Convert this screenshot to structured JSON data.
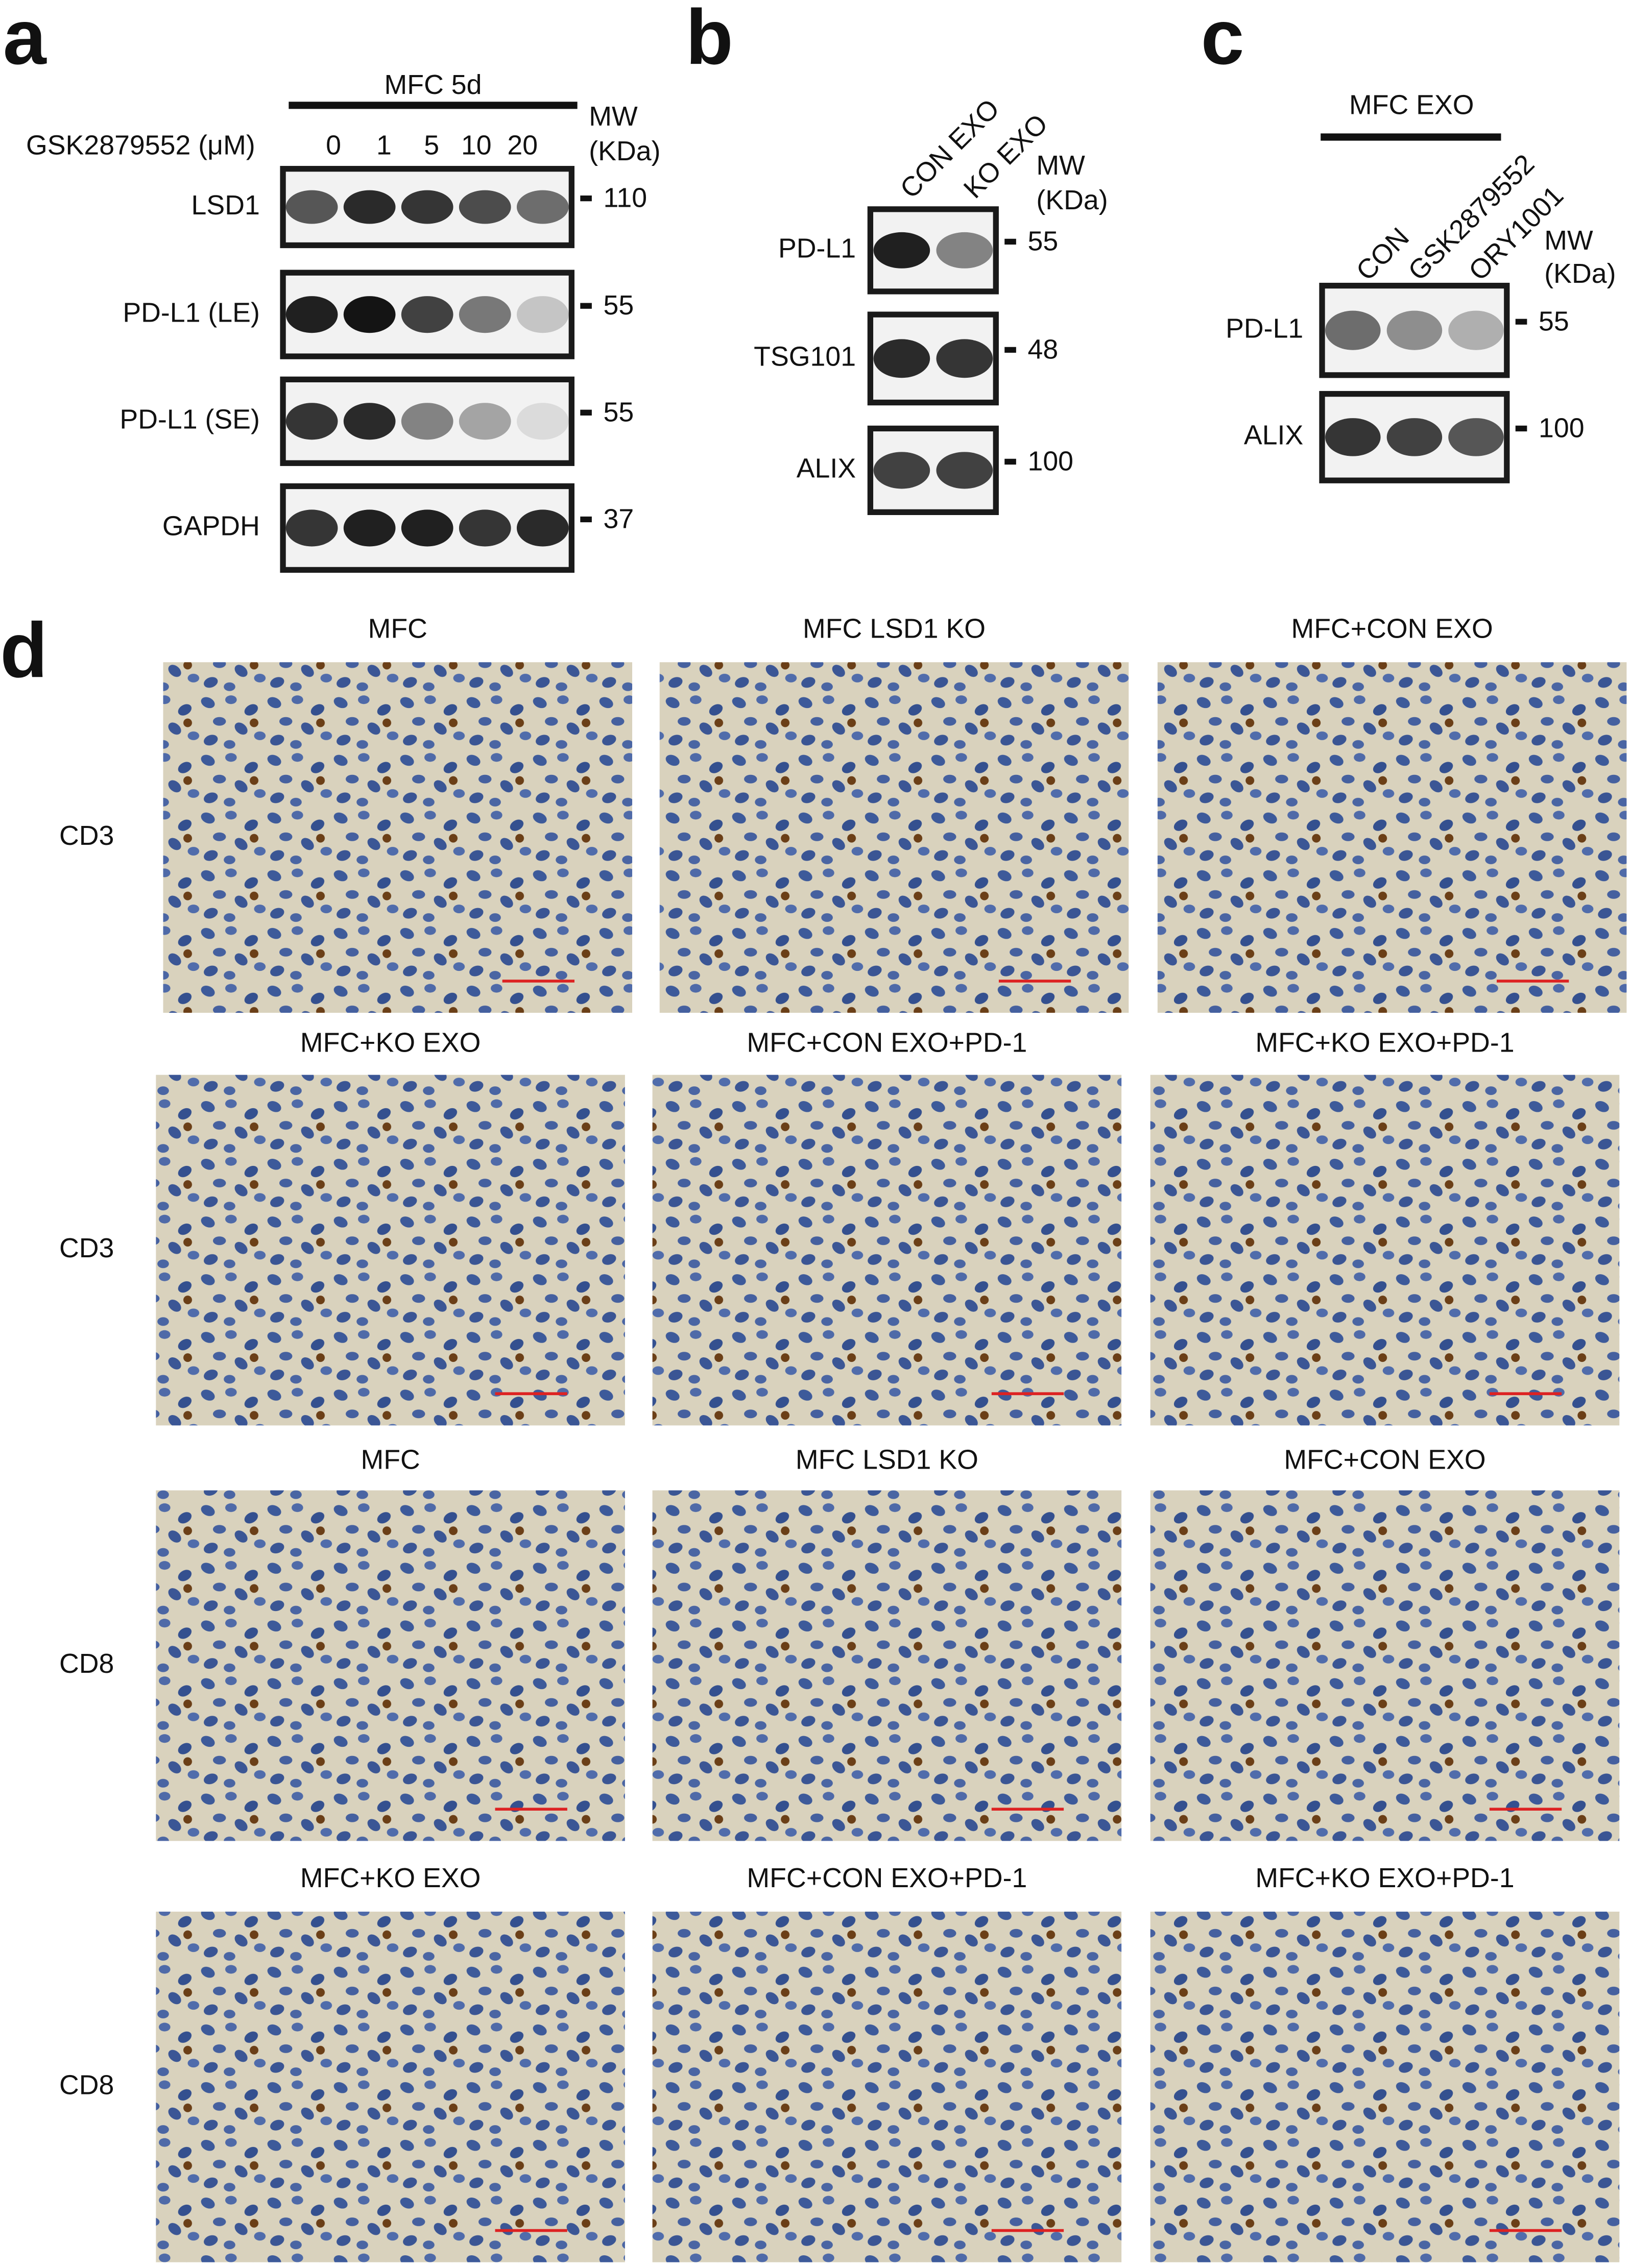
{
  "panels": {
    "a": {
      "label": "a",
      "title": "MFC 5d",
      "treatment": "GSK2879552 (μM)",
      "lanes": [
        "0",
        "1",
        "5",
        "10",
        "20"
      ],
      "mw_header": [
        "MW",
        "(KDa)"
      ],
      "blots": [
        {
          "name": "LSD1",
          "mw": "110"
        },
        {
          "name": "PD-L1 (LE)",
          "mw": "55"
        },
        {
          "name": "PD-L1 (SE)",
          "mw": "55"
        },
        {
          "name": "GAPDH",
          "mw": "37"
        }
      ]
    },
    "b": {
      "label": "b",
      "lanes": [
        "CON EXO",
        "KO EXO"
      ],
      "mw_header": [
        "MW",
        "(KDa)"
      ],
      "blots": [
        {
          "name": "PD-L1",
          "mw": "55"
        },
        {
          "name": "TSG101",
          "mw": "48"
        },
        {
          "name": "ALIX",
          "mw": "100"
        }
      ]
    },
    "c": {
      "label": "c",
      "title": "MFC EXO",
      "lanes": [
        "CON",
        "GSK2879552",
        "ORY1001"
      ],
      "mw_header": [
        "MW",
        "(KDa)"
      ],
      "blots": [
        {
          "name": "PD-L1",
          "mw": "55"
        },
        {
          "name": "ALIX",
          "mw": "100"
        }
      ]
    },
    "d": {
      "label": "d",
      "rows": [
        {
          "marker": "CD3",
          "titles": [
            "MFC",
            "MFC LSD1 KO",
            "MFC+CON EXO"
          ]
        },
        {
          "marker": "CD3",
          "titles": [
            "MFC+KO EXO",
            "MFC+CON EXO+PD-1",
            "MFC+KO EXO+PD-1"
          ]
        },
        {
          "marker": "CD8",
          "titles": [
            "MFC",
            "MFC LSD1 KO",
            "MFC+CON EXO"
          ]
        },
        {
          "marker": "CD8",
          "titles": [
            "MFC+KO EXO",
            "MFC+CON EXO+PD-1",
            "MFC+KO EXO+PD-1"
          ]
        }
      ]
    }
  }
}
